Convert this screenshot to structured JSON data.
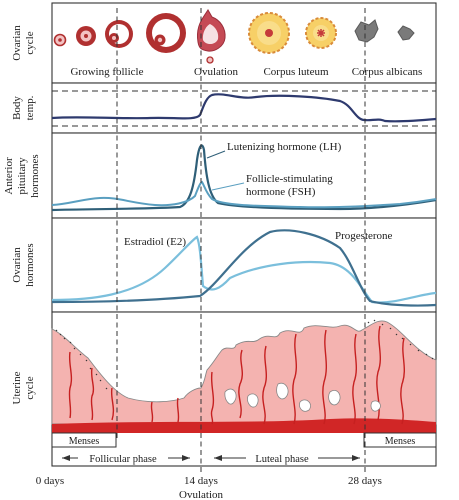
{
  "panels": {
    "ovarian_cycle": "Ovarian cycle",
    "body_temp": "Body temp.",
    "anterior_pituitary": "Anterior pituitary hormones",
    "ovarian_hormones": "Ovarian hormones",
    "uterine_cycle": "Uterine cycle"
  },
  "stages": {
    "growing_follicle": "Growing follicle",
    "ovulation": "Ovulation",
    "corpus_luteum": "Corpus luteum",
    "corpus_albicans": "Corpus albicans"
  },
  "curve_labels": {
    "lh": "Lutenizing hormone (LH)",
    "fsh_line1": "Follicle-stimulating",
    "fsh_line2": "hormone (FSH)",
    "estradiol": "Estradiol (E2)",
    "progesterone": "Progesterone"
  },
  "menses": {
    "left": "Menses",
    "right": "Menses"
  },
  "phases": {
    "follicular": "Follicular phase",
    "luteal": "Luteal phase"
  },
  "days": {
    "start": "0 days",
    "mid": "14 days",
    "end": "28 days"
  },
  "ovulation_label": "Ovulation",
  "colors": {
    "follicle_red": "#b03030",
    "corpus_yellow": "#f7d067",
    "albicans_gray": "#7a7a7a",
    "temp_curve": "#2e3a6e",
    "lh_curve": "#2f5f78",
    "fsh_curve": "#5a9fc0",
    "estradiol_curve": "#7bbfdc",
    "progesterone_curve": "#3f708f",
    "endometrium": "#f4b3b0",
    "vessel_red": "#d12626"
  }
}
